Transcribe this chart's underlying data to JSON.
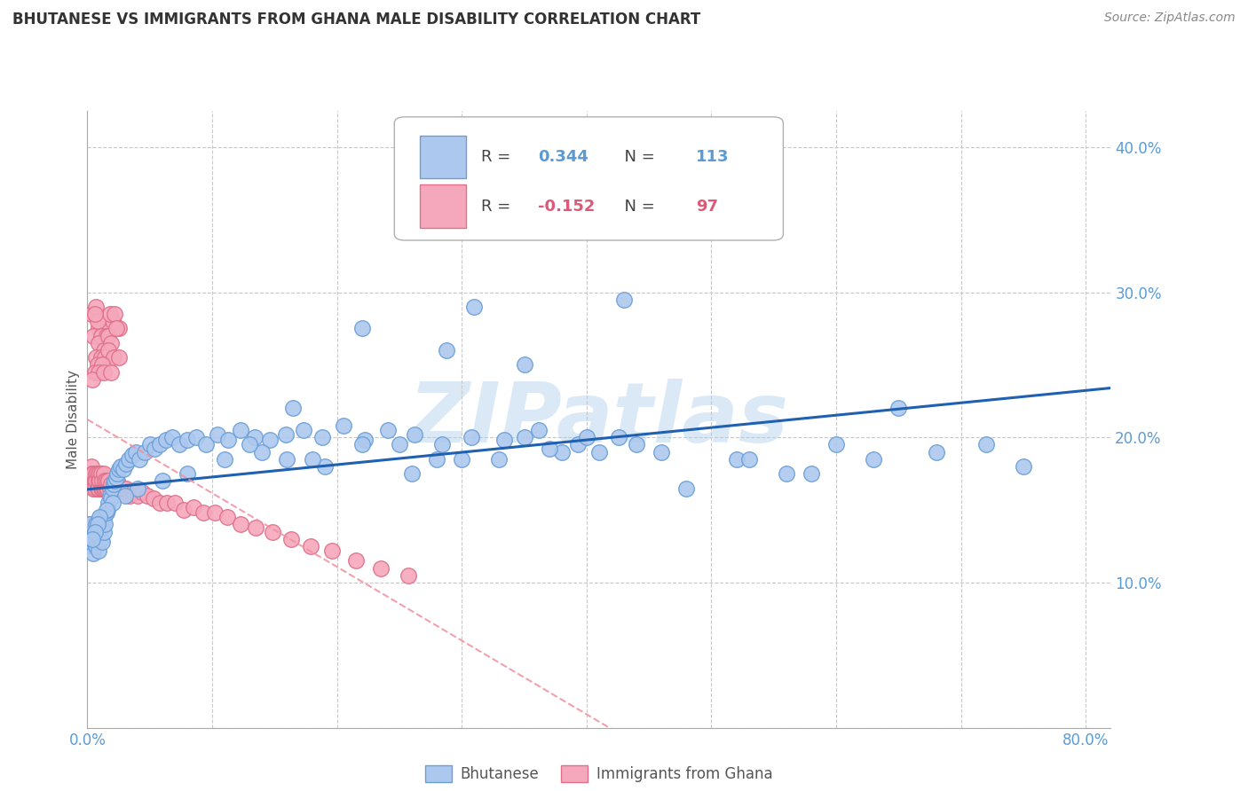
{
  "title": "BHUTANESE VS IMMIGRANTS FROM GHANA MALE DISABILITY CORRELATION CHART",
  "source": "Source: ZipAtlas.com",
  "ylabel": "Male Disability",
  "xlim": [
    0.0,
    0.82
  ],
  "ylim": [
    0.0,
    0.425
  ],
  "x_ticks": [
    0.0,
    0.1,
    0.2,
    0.3,
    0.4,
    0.5,
    0.6,
    0.7,
    0.8
  ],
  "y_ticks": [
    0.0,
    0.1,
    0.2,
    0.3,
    0.4
  ],
  "bhutanese_color": "#adc8ee",
  "ghana_color": "#f5a8bc",
  "bhutanese_edge": "#6a9fd8",
  "ghana_edge": "#e0708a",
  "trend_blue": "#2060b0",
  "trend_pink": "#f090a0",
  "grid_color": "#c8c8c8",
  "watermark": "ZIPatlas",
  "R_bhutanese": 0.344,
  "N_bhutanese": 113,
  "R_ghana": -0.152,
  "N_ghana": 97,
  "legend_label1": "Bhutanese",
  "legend_label2": "Immigrants from Ghana",
  "bhutanese_x": [
    0.001,
    0.002,
    0.003,
    0.004,
    0.005,
    0.006,
    0.007,
    0.007,
    0.008,
    0.008,
    0.009,
    0.009,
    0.01,
    0.01,
    0.011,
    0.011,
    0.012,
    0.012,
    0.013,
    0.013,
    0.014,
    0.015,
    0.016,
    0.017,
    0.018,
    0.019,
    0.02,
    0.021,
    0.022,
    0.023,
    0.024,
    0.025,
    0.027,
    0.029,
    0.031,
    0.033,
    0.036,
    0.039,
    0.042,
    0.046,
    0.05,
    0.054,
    0.058,
    0.063,
    0.068,
    0.074,
    0.08,
    0.087,
    0.095,
    0.104,
    0.113,
    0.123,
    0.134,
    0.146,
    0.159,
    0.173,
    0.188,
    0.205,
    0.222,
    0.241,
    0.262,
    0.284,
    0.308,
    0.334,
    0.362,
    0.393,
    0.426,
    0.288,
    0.22,
    0.165,
    0.31,
    0.38,
    0.44,
    0.52,
    0.58,
    0.63,
    0.68,
    0.72,
    0.75,
    0.48,
    0.56,
    0.41,
    0.35,
    0.3,
    0.26,
    0.19,
    0.14,
    0.11,
    0.08,
    0.06,
    0.04,
    0.03,
    0.02,
    0.015,
    0.01,
    0.008,
    0.006,
    0.004,
    0.33,
    0.37,
    0.4,
    0.25,
    0.18,
    0.43,
    0.28,
    0.16,
    0.35,
    0.13,
    0.22,
    0.46,
    0.53,
    0.6,
    0.65
  ],
  "bhutanese_y": [
    0.13,
    0.14,
    0.125,
    0.13,
    0.12,
    0.135,
    0.125,
    0.14,
    0.128,
    0.138,
    0.122,
    0.132,
    0.13,
    0.14,
    0.13,
    0.145,
    0.128,
    0.138,
    0.135,
    0.145,
    0.14,
    0.148,
    0.15,
    0.155,
    0.16,
    0.158,
    0.165,
    0.168,
    0.17,
    0.172,
    0.175,
    0.178,
    0.18,
    0.178,
    0.182,
    0.185,
    0.188,
    0.19,
    0.185,
    0.19,
    0.195,
    0.192,
    0.195,
    0.198,
    0.2,
    0.195,
    0.198,
    0.2,
    0.195,
    0.202,
    0.198,
    0.205,
    0.2,
    0.198,
    0.202,
    0.205,
    0.2,
    0.208,
    0.198,
    0.205,
    0.202,
    0.195,
    0.2,
    0.198,
    0.205,
    0.195,
    0.2,
    0.26,
    0.275,
    0.22,
    0.29,
    0.19,
    0.195,
    0.185,
    0.175,
    0.185,
    0.19,
    0.195,
    0.18,
    0.165,
    0.175,
    0.19,
    0.2,
    0.185,
    0.175,
    0.18,
    0.19,
    0.185,
    0.175,
    0.17,
    0.165,
    0.16,
    0.155,
    0.15,
    0.145,
    0.14,
    0.135,
    0.13,
    0.185,
    0.192,
    0.2,
    0.195,
    0.185,
    0.295,
    0.185,
    0.185,
    0.25,
    0.195,
    0.195,
    0.19,
    0.185,
    0.195,
    0.22
  ],
  "ghana_x": [
    0.001,
    0.001,
    0.002,
    0.002,
    0.003,
    0.003,
    0.004,
    0.004,
    0.005,
    0.005,
    0.006,
    0.006,
    0.007,
    0.007,
    0.008,
    0.008,
    0.009,
    0.009,
    0.01,
    0.01,
    0.011,
    0.011,
    0.012,
    0.012,
    0.013,
    0.013,
    0.014,
    0.014,
    0.015,
    0.015,
    0.016,
    0.017,
    0.018,
    0.019,
    0.02,
    0.021,
    0.022,
    0.023,
    0.024,
    0.025,
    0.027,
    0.029,
    0.031,
    0.034,
    0.037,
    0.04,
    0.044,
    0.048,
    0.053,
    0.058,
    0.064,
    0.07,
    0.077,
    0.085,
    0.093,
    0.102,
    0.112,
    0.123,
    0.135,
    0.148,
    0.163,
    0.179,
    0.196,
    0.215,
    0.235,
    0.257,
    0.009,
    0.012,
    0.007,
    0.016,
    0.005,
    0.02,
    0.008,
    0.025,
    0.011,
    0.018,
    0.006,
    0.015,
    0.009,
    0.022,
    0.013,
    0.017,
    0.007,
    0.019,
    0.011,
    0.023,
    0.008,
    0.014,
    0.017,
    0.006,
    0.021,
    0.012,
    0.009,
    0.025,
    0.004,
    0.013,
    0.019
  ],
  "ghana_y": [
    0.135,
    0.175,
    0.14,
    0.175,
    0.18,
    0.285,
    0.175,
    0.17,
    0.175,
    0.165,
    0.17,
    0.165,
    0.175,
    0.17,
    0.165,
    0.175,
    0.17,
    0.165,
    0.175,
    0.17,
    0.165,
    0.175,
    0.165,
    0.17,
    0.165,
    0.175,
    0.165,
    0.17,
    0.165,
    0.17,
    0.165,
    0.17,
    0.165,
    0.168,
    0.165,
    0.168,
    0.165,
    0.165,
    0.17,
    0.165,
    0.165,
    0.165,
    0.165,
    0.16,
    0.162,
    0.16,
    0.162,
    0.16,
    0.158,
    0.155,
    0.155,
    0.155,
    0.15,
    0.152,
    0.148,
    0.148,
    0.145,
    0.14,
    0.138,
    0.135,
    0.13,
    0.125,
    0.122,
    0.115,
    0.11,
    0.105,
    0.275,
    0.27,
    0.29,
    0.275,
    0.27,
    0.28,
    0.28,
    0.275,
    0.27,
    0.285,
    0.285,
    0.27,
    0.265,
    0.285,
    0.26,
    0.27,
    0.255,
    0.265,
    0.255,
    0.275,
    0.25,
    0.255,
    0.26,
    0.245,
    0.255,
    0.25,
    0.245,
    0.255,
    0.24,
    0.245,
    0.245
  ]
}
